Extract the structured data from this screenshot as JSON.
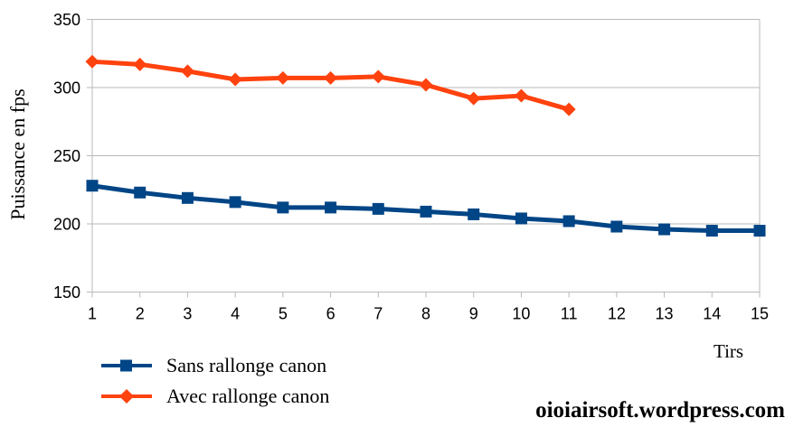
{
  "watermark": "oioiairsoft.wordpress.com",
  "chart_data": {
    "type": "line",
    "title": "",
    "xlabel": "Tirs",
    "ylabel": "Puissance en fps",
    "categories": [
      "1",
      "2",
      "3",
      "4",
      "5",
      "6",
      "7",
      "8",
      "9",
      "10",
      "11",
      "12",
      "13",
      "14",
      "15"
    ],
    "ylim": [
      150,
      350
    ],
    "ytick_step": 50,
    "grid": "horizontal",
    "legend_position": "bottom-left",
    "axis_color": "#b9b9b9",
    "series": [
      {
        "name": "Sans rallonge canon",
        "color": "#004586",
        "marker": "square",
        "values": [
          228,
          223,
          219,
          216,
          212,
          212,
          211,
          209,
          207,
          204,
          202,
          198,
          196,
          195,
          195
        ]
      },
      {
        "name": "Avec rallonge canon",
        "color": "#FF420E",
        "marker": "diamond",
        "values": [
          319,
          317,
          312,
          306,
          307,
          307,
          308,
          302,
          292,
          294,
          284,
          null,
          null,
          null,
          null
        ]
      }
    ]
  }
}
